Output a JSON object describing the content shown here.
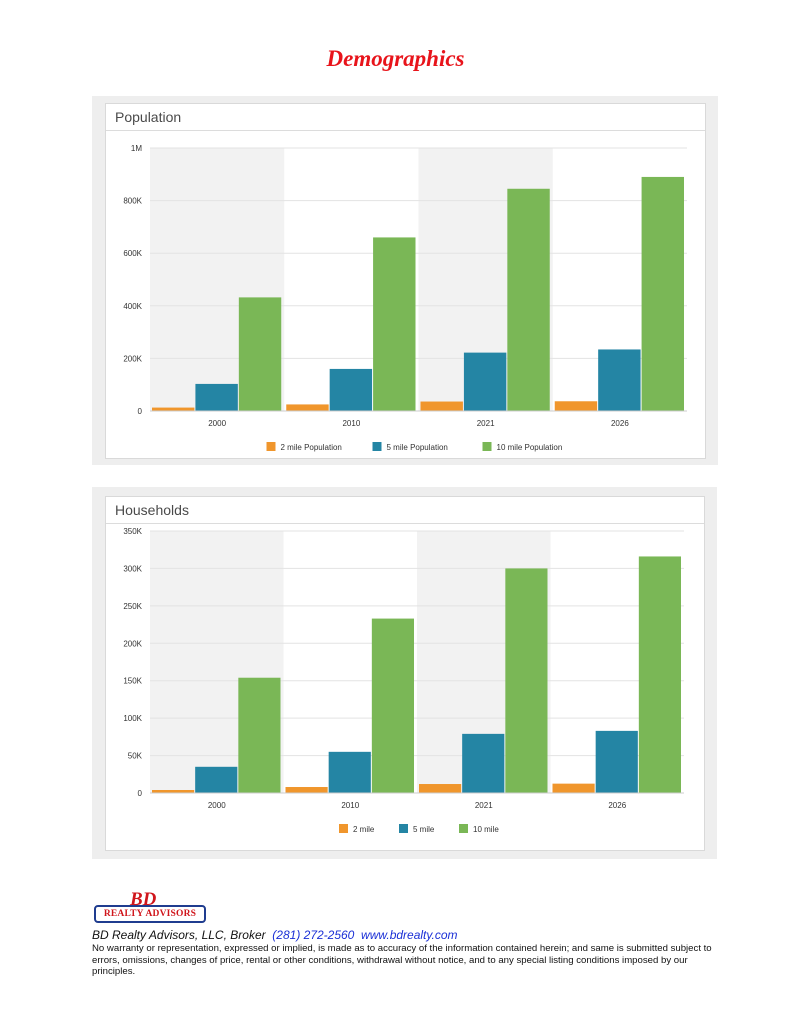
{
  "page": {
    "title": "Demographics"
  },
  "chart_data": [
    {
      "type": "bar",
      "title": "Population",
      "categories": [
        "2000",
        "2010",
        "2021",
        "2026"
      ],
      "series": [
        {
          "name": "2 mile Population",
          "values": [
            13000,
            25000,
            36000,
            37000
          ]
        },
        {
          "name": "5 mile Population",
          "values": [
            103000,
            160000,
            222000,
            234000
          ]
        },
        {
          "name": "10 mile Population",
          "values": [
            432000,
            660000,
            845000,
            890000
          ]
        }
      ],
      "ylim": [
        0,
        1000000
      ],
      "yticks": [
        0,
        200000,
        400000,
        600000,
        800000,
        1000000
      ],
      "ytick_labels": [
        "0",
        "200K",
        "400K",
        "600K",
        "800K",
        "1M"
      ],
      "colors": [
        "#f0962c",
        "#2485a4",
        "#7ab756"
      ],
      "band_color": "#f2f2f2",
      "legend_position": "bottom",
      "grid": true
    },
    {
      "type": "bar",
      "title": "Households",
      "categories": [
        "2000",
        "2010",
        "2021",
        "2026"
      ],
      "series": [
        {
          "name": "2 mile",
          "values": [
            4000,
            8000,
            12000,
            12500
          ]
        },
        {
          "name": "5 mile",
          "values": [
            35000,
            55000,
            79000,
            83000
          ]
        },
        {
          "name": "10 mile",
          "values": [
            154000,
            233000,
            300000,
            316000
          ]
        }
      ],
      "ylim": [
        0,
        350000
      ],
      "yticks": [
        0,
        50000,
        100000,
        150000,
        200000,
        250000,
        300000,
        350000
      ],
      "ytick_labels": [
        "0",
        "50K",
        "100K",
        "150K",
        "200K",
        "250K",
        "300K",
        "350K"
      ],
      "colors": [
        "#f0962c",
        "#2485a4",
        "#7ab756"
      ],
      "band_color": "#f2f2f2",
      "legend_position": "bottom",
      "grid": true
    }
  ],
  "footer": {
    "logo_letters": "BD",
    "logo_text": "REALTY ADVISORS",
    "company": "BD Realty Advisors, LLC, Broker",
    "phone": "(281) 272-2560",
    "website": "www.bdrealty.com",
    "disclaimer": "No warranty or representation, expressed or implied, is made as to accuracy of the information contained herein; and same is submitted subject to errors, omissions, changes of price, rental or other conditions, withdrawal without notice, and to any special listing conditions imposed by our principles."
  }
}
